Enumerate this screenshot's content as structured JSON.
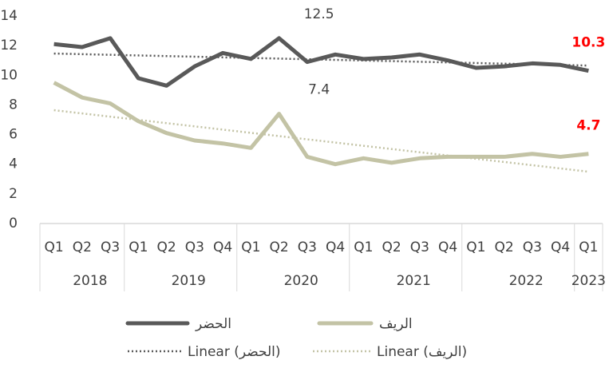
{
  "chart_data": {
    "type": "line",
    "ylim": [
      0,
      14
    ],
    "yticks": [
      0,
      2,
      4,
      6,
      8,
      10,
      12,
      14
    ],
    "categories": [
      "Q1",
      "Q2",
      "Q3",
      "Q1",
      "Q2",
      "Q3",
      "Q4",
      "Q1",
      "Q2",
      "Q3",
      "Q4",
      "Q1",
      "Q2",
      "Q3",
      "Q4",
      "Q1",
      "Q2",
      "Q3",
      "Q4",
      "Q1"
    ],
    "groups": [
      {
        "label": "2018",
        "count": 3
      },
      {
        "label": "2019",
        "count": 4
      },
      {
        "label": "2020",
        "count": 4
      },
      {
        "label": "2021",
        "count": 4
      },
      {
        "label": "2022",
        "count": 4
      },
      {
        "label": "2023",
        "count": 1
      }
    ],
    "series": [
      {
        "name": "الحضر",
        "color": "#595959",
        "trend_name": "Linear (الحضر)",
        "values": [
          12.1,
          11.9,
          12.5,
          9.8,
          9.3,
          10.6,
          11.5,
          11.1,
          12.5,
          10.9,
          11.4,
          11.1,
          11.2,
          11.4,
          11.0,
          10.5,
          10.6,
          10.8,
          10.7,
          10.3
        ],
        "data_labels": [
          {
            "index": 8,
            "color": "#404040",
            "bold": false
          },
          {
            "index": 19,
            "color": "#ff0000",
            "bold": true
          }
        ]
      },
      {
        "name": "الريف",
        "color": "#c3c3a5",
        "trend_name": "Linear (الريف)",
        "values": [
          9.5,
          8.5,
          8.1,
          6.9,
          6.1,
          5.6,
          5.4,
          5.1,
          7.4,
          4.5,
          4.0,
          4.4,
          4.1,
          4.4,
          4.5,
          4.5,
          4.5,
          4.7,
          4.5,
          4.7
        ],
        "data_labels": [
          {
            "index": 8,
            "color": "#404040",
            "bold": false
          },
          {
            "index": 19,
            "color": "#ff0000",
            "bold": true
          }
        ]
      }
    ]
  }
}
